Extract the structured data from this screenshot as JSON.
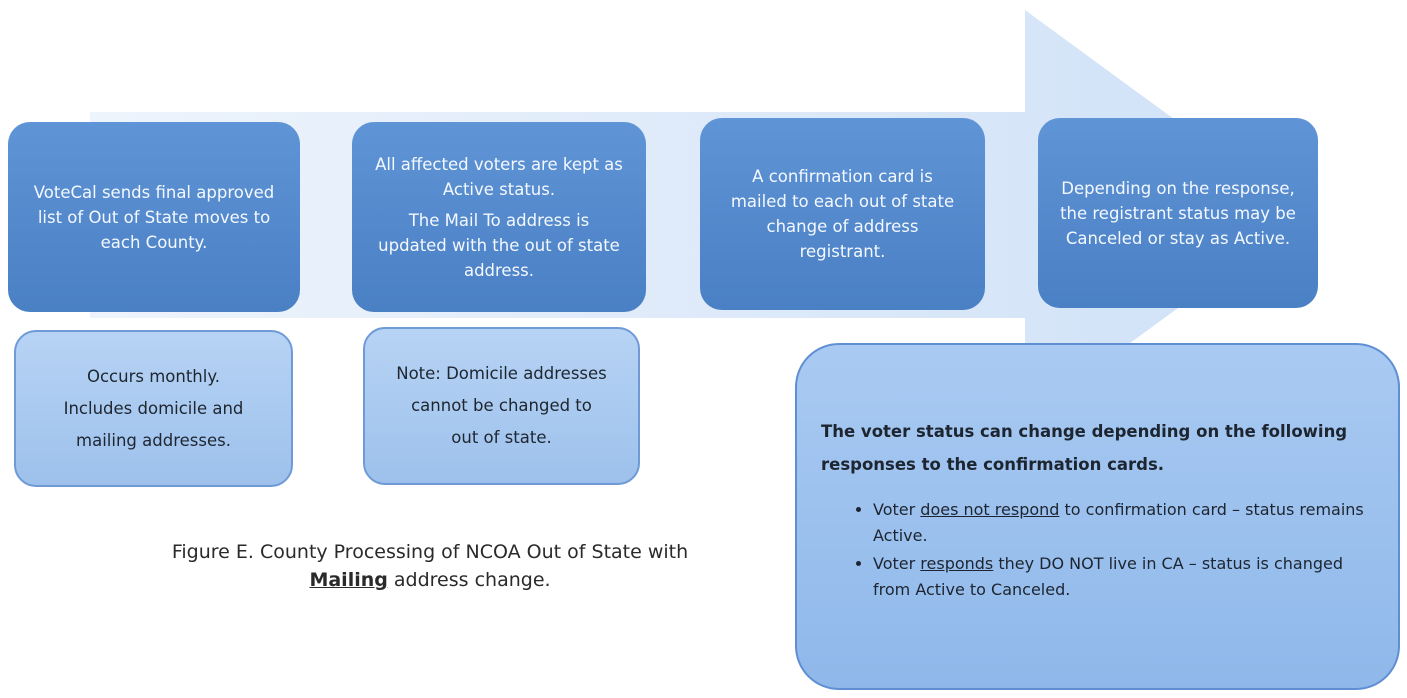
{
  "steps": [
    {
      "paragraphs": [
        "VoteCal sends final approved list of Out of State moves to each County."
      ]
    },
    {
      "paragraphs": [
        "All affected voters are kept as Active status.",
        "The Mail To address is updated with the out of state address."
      ]
    },
    {
      "paragraphs": [
        "A confirmation card is mailed to each out of state change of address registrant."
      ]
    },
    {
      "paragraphs": [
        "Depending on the response, the registrant status may be Canceled or stay as Active."
      ]
    }
  ],
  "notes": [
    {
      "lines": [
        "Occurs monthly.",
        "Includes domicile and mailing addresses."
      ]
    },
    {
      "lines": [
        "Note: Domicile addresses cannot be changed to out of state."
      ]
    }
  ],
  "status_box": {
    "heading": "The voter status can change depending on the following responses to the confirmation cards.",
    "bullets": [
      {
        "parts": [
          "Voter ",
          "does not respond",
          " to confirmation card – status remains Active."
        ]
      },
      {
        "parts": [
          "Voter ",
          "responds",
          " they DO NOT live in CA – status is changed from Active to Canceled."
        ]
      }
    ]
  },
  "caption": {
    "parts": [
      "Figure E. County Processing of NCOA Out of State with ",
      "Mailing",
      " address change."
    ]
  }
}
